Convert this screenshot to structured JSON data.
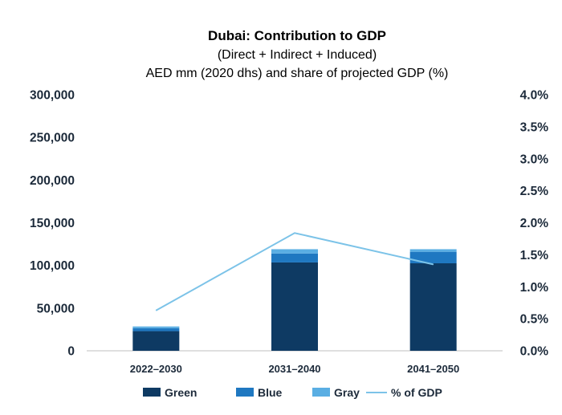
{
  "chart_data": {
    "type": "bar",
    "stacked": true,
    "title": "Dubai: Contribution to GDP",
    "subtitle_1": "(Direct + Indirect + Induced)",
    "subtitle_2": "AED mm (2020 dhs) and share of projected GDP (%)",
    "categories": [
      "2022–2030",
      "2031–2040",
      "2041–2050"
    ],
    "series": [
      {
        "name": "Green",
        "type": "bar",
        "axis": "left",
        "color": "#0e3a63",
        "values": [
          23000,
          103500,
          102500
        ]
      },
      {
        "name": "Blue",
        "type": "bar",
        "axis": "left",
        "color": "#1f78c1",
        "values": [
          3500,
          10500,
          13500
        ]
      },
      {
        "name": "Gray",
        "type": "bar",
        "axis": "left",
        "color": "#5aaee3",
        "values": [
          2000,
          5000,
          3000
        ]
      },
      {
        "name": "% of GDP",
        "type": "line",
        "axis": "right",
        "color": "#7cc3e8",
        "values": [
          0.63,
          1.84,
          1.35
        ]
      }
    ],
    "y_left": {
      "ylim": [
        0,
        300000
      ],
      "ticks": [
        "0",
        "50,000",
        "100,000",
        "150,000",
        "200,000",
        "250,000",
        "300,000"
      ],
      "tick_values": [
        0,
        50000,
        100000,
        150000,
        200000,
        250000,
        300000
      ]
    },
    "y_right": {
      "ylim": [
        0,
        4.0
      ],
      "ticks": [
        "0.0%",
        "0.5%",
        "1.0%",
        "1.5%",
        "2.0%",
        "2.5%",
        "3.0%",
        "3.5%",
        "4.0%"
      ],
      "tick_values": [
        0,
        0.5,
        1.0,
        1.5,
        2.0,
        2.5,
        3.0,
        3.5,
        4.0
      ]
    },
    "grid": false,
    "legend_position": "bottom"
  }
}
